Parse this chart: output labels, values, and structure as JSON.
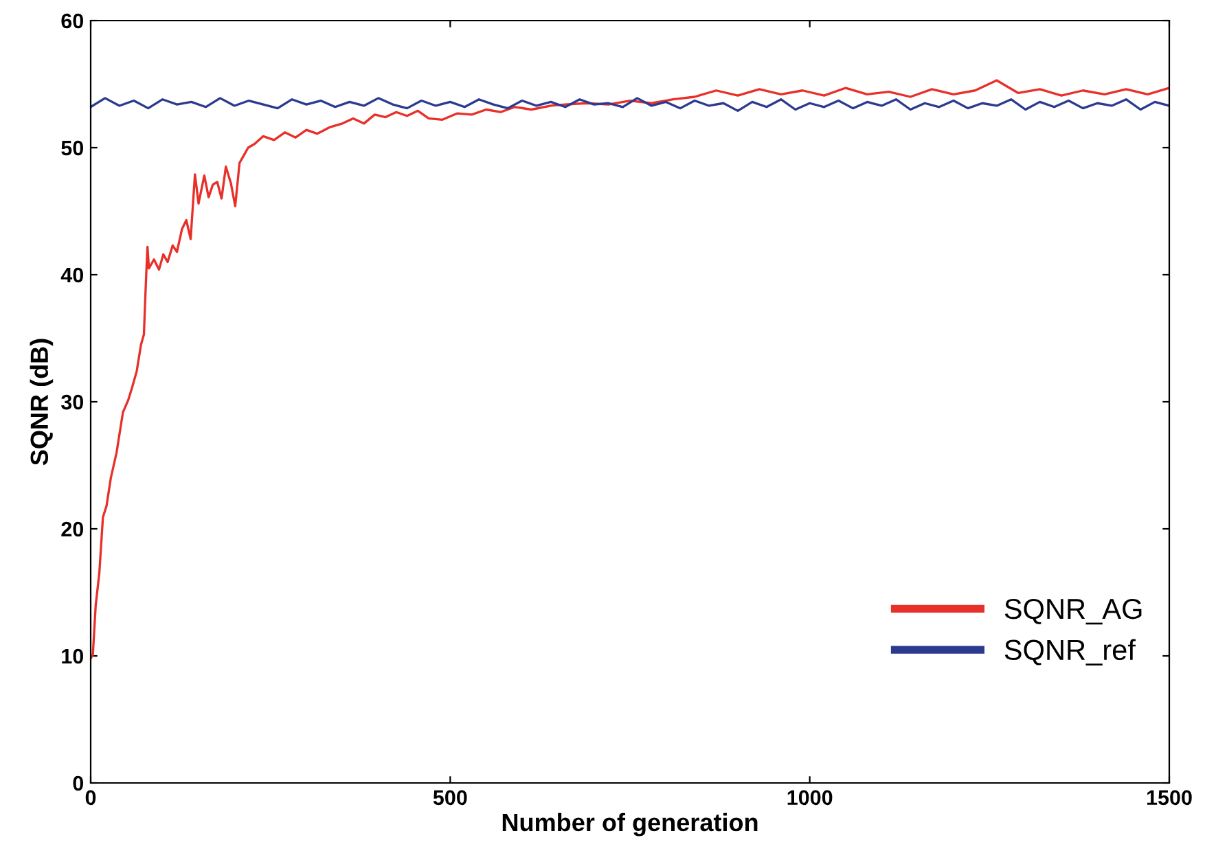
{
  "chart_data": {
    "type": "line",
    "xlabel": "Number of generation",
    "ylabel": "SQNR (dB)",
    "xlim": [
      0,
      1500
    ],
    "ylim": [
      0,
      60
    ],
    "xticks": [
      0,
      500,
      1000,
      1500
    ],
    "yticks": [
      0,
      10,
      20,
      30,
      40,
      50,
      60
    ],
    "grid": false,
    "legend": "bottom right",
    "marker": "none",
    "line_style": "solid",
    "series": [
      {
        "name": "SQNR_AG",
        "color": "#e8302a",
        "x": [
          0,
          3,
          7,
          12,
          17,
          22,
          28,
          36,
          41,
          45,
          52,
          58,
          64,
          70,
          74,
          77,
          79,
          81,
          88,
          95,
          101,
          107,
          114,
          120,
          127,
          133,
          139,
          145,
          150,
          158,
          164,
          170,
          176,
          182,
          188,
          195,
          201,
          207,
          213,
          219,
          228,
          240,
          255,
          270,
          285,
          300,
          315,
          332,
          350,
          365,
          380,
          395,
          410,
          425,
          440,
          455,
          470,
          489,
          510,
          530,
          550,
          570,
          590,
          613,
          640,
          660,
          690,
          720,
          750,
          780,
          810,
          840,
          870,
          900,
          930,
          960,
          990,
          1020,
          1050,
          1080,
          1110,
          1140,
          1170,
          1200,
          1230,
          1260,
          1290,
          1320,
          1350,
          1380,
          1410,
          1440,
          1470,
          1500
        ],
        "values": [
          9.8,
          10.1,
          14,
          16.5,
          20.9,
          21.8,
          24,
          26,
          27.8,
          29.2,
          30.1,
          31.2,
          32.4,
          34.5,
          35.3,
          39.7,
          42.2,
          40.5,
          41.2,
          40.4,
          41.6,
          41,
          42.3,
          41.8,
          43.6,
          44.3,
          42.8,
          47.9,
          45.6,
          47.8,
          46.1,
          47.1,
          47.3,
          46,
          48.5,
          47.2,
          45.4,
          48.8,
          49.4,
          50,
          50.3,
          50.9,
          50.6,
          51.2,
          50.8,
          51.4,
          51.1,
          51.6,
          51.9,
          52.3,
          51.9,
          52.6,
          52.4,
          52.8,
          52.5,
          52.9,
          52.3,
          52.2,
          52.7,
          52.6,
          53,
          52.8,
          53.2,
          53,
          53.3,
          53.4,
          53.5,
          53.4,
          53.7,
          53.5,
          53.8,
          54,
          54.5,
          54.1,
          54.6,
          54.2,
          54.5,
          54.1,
          54.7,
          54.2,
          54.4,
          54,
          54.6,
          54.2,
          54.5,
          55.3,
          54.3,
          54.6,
          54.1,
          54.5,
          54.2,
          54.6,
          54.2,
          54.7
        ]
      },
      {
        "name": "SQNR_ref",
        "color": "#2b3a8f",
        "x": [
          0,
          20,
          40,
          60,
          80,
          100,
          120,
          140,
          160,
          180,
          200,
          220,
          240,
          260,
          280,
          300,
          320,
          340,
          360,
          380,
          400,
          420,
          440,
          460,
          480,
          500,
          520,
          540,
          560,
          580,
          600,
          620,
          640,
          660,
          680,
          700,
          720,
          740,
          760,
          780,
          800,
          820,
          840,
          860,
          880,
          900,
          920,
          940,
          960,
          980,
          1000,
          1020,
          1040,
          1060,
          1080,
          1100,
          1120,
          1140,
          1160,
          1180,
          1200,
          1220,
          1240,
          1260,
          1280,
          1300,
          1320,
          1340,
          1360,
          1380,
          1400,
          1420,
          1440,
          1460,
          1480,
          1500
        ],
        "values": [
          53.2,
          53.9,
          53.3,
          53.7,
          53.1,
          53.8,
          53.4,
          53.6,
          53.2,
          53.9,
          53.3,
          53.7,
          53.4,
          53.1,
          53.8,
          53.4,
          53.7,
          53.2,
          53.6,
          53.3,
          53.9,
          53.4,
          53.1,
          53.7,
          53.3,
          53.6,
          53.2,
          53.8,
          53.4,
          53.1,
          53.7,
          53.3,
          53.6,
          53.2,
          53.8,
          53.4,
          53.5,
          53.2,
          53.9,
          53.3,
          53.6,
          53.1,
          53.7,
          53.3,
          53.5,
          52.9,
          53.6,
          53.2,
          53.8,
          53,
          53.5,
          53.2,
          53.7,
          53.1,
          53.6,
          53.3,
          53.8,
          53,
          53.5,
          53.2,
          53.7,
          53.1,
          53.5,
          53.3,
          53.8,
          53,
          53.6,
          53.2,
          53.7,
          53.1,
          53.5,
          53.3,
          53.8,
          53,
          53.6,
          53.3
        ]
      }
    ]
  }
}
